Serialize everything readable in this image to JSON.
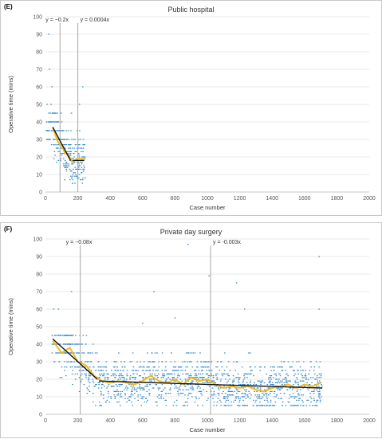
{
  "chart_data": [
    {
      "panel_label": "(E)",
      "title": "Public hospital",
      "type": "scatter",
      "xlabel": "Case number",
      "ylabel": "Operative time (mins)",
      "xlim": [
        0,
        2000
      ],
      "ylim": [
        0,
        100
      ],
      "x_ticks": [
        "0",
        "200",
        "400",
        "600",
        "800",
        "1000",
        "1200",
        "1400",
        "1600",
        "1800",
        "2000"
      ],
      "y_ticks": [
        "0",
        "10",
        "20",
        "30",
        "40",
        "50",
        "60",
        "70",
        "80",
        "90",
        "100"
      ],
      "grid": true,
      "annotations": [
        {
          "text": "y = −0.2x",
          "x": 90
        },
        {
          "text": "y = 0.0004x",
          "x": 200
        }
      ],
      "changepoints": [
        90,
        200
      ],
      "trend_lines": [
        {
          "x": [
            45,
            155
          ],
          "y": [
            37,
            18
          ]
        },
        {
          "x": [
            170,
            240
          ],
          "y": [
            18,
            18
          ]
        }
      ],
      "moving_average": {
        "x": [
          45,
          60,
          75,
          90,
          105,
          120,
          135,
          150,
          165,
          180,
          195,
          210,
          225,
          240
        ],
        "y": [
          37,
          33,
          29,
          27,
          26,
          22,
          22,
          20,
          17,
          18,
          19,
          19,
          19,
          19
        ]
      },
      "scatter": {
        "x_range": [
          5,
          245
        ],
        "y_levels": [
          5,
          7,
          8,
          9,
          10,
          11,
          12,
          13,
          14,
          15,
          16,
          17,
          18,
          19,
          20,
          21,
          22,
          23,
          25,
          27,
          30,
          35,
          40,
          45,
          50,
          60
        ],
        "outliers": [
          [
            20,
            90
          ],
          [
            25,
            70
          ],
          [
            40,
            60
          ],
          [
            230,
            60
          ],
          [
            210,
            50
          ],
          [
            35,
            50
          ],
          [
            160,
            45
          ]
        ]
      }
    },
    {
      "panel_label": "(F)",
      "title": "Private day surgery",
      "type": "scatter",
      "xlabel": "Case number",
      "ylabel": "Operative time (mins)",
      "xlim": [
        0,
        2000
      ],
      "ylim": [
        0,
        100
      ],
      "x_ticks": [
        "0",
        "200",
        "400",
        "600",
        "800",
        "1000",
        "1200",
        "1400",
        "1600",
        "1800",
        "2000"
      ],
      "y_ticks": [
        "0",
        "10",
        "20",
        "30",
        "40",
        "50",
        "60",
        "70",
        "80",
        "90",
        "100"
      ],
      "grid": true,
      "annotations": [
        {
          "text": "y = −0.08x",
          "x": 215
        },
        {
          "text": "y = -0.003x",
          "x": 1020
        }
      ],
      "changepoints": [
        215,
        1020
      ],
      "trend_lines": [
        {
          "x": [
            45,
            320
          ],
          "y": [
            43,
            20
          ]
        },
        {
          "x": [
            330,
            1710
          ],
          "y": [
            19,
            15
          ]
        }
      ],
      "moving_average": {
        "x": [
          45,
          100,
          150,
          200,
          250,
          300,
          350,
          400,
          450,
          500,
          550,
          600,
          650,
          700,
          750,
          800,
          850,
          900,
          950,
          1000,
          1050,
          1100,
          1150,
          1200,
          1250,
          1300,
          1350,
          1400,
          1450,
          1500,
          1550,
          1600,
          1650,
          1700
        ],
        "y": [
          42,
          35,
          38,
          30,
          28,
          22,
          19,
          18,
          19,
          18,
          17,
          19,
          22,
          19,
          18,
          20,
          17,
          21,
          19,
          20,
          17,
          15,
          16,
          15,
          16,
          14,
          13,
          15,
          16,
          17,
          15,
          17,
          16,
          18
        ]
      },
      "scatter": {
        "x_range": [
          40,
          1710
        ],
        "y_levels": [
          5,
          7,
          8,
          9,
          10,
          11,
          12,
          13,
          14,
          15,
          16,
          17,
          18,
          19,
          20,
          21,
          22,
          23,
          25,
          27,
          30,
          35,
          40,
          45
        ],
        "outliers": [
          [
            880,
            97
          ],
          [
            1010,
            79
          ],
          [
            1690,
            90
          ],
          [
            670,
            70
          ],
          [
            160,
            70
          ],
          [
            1180,
            75
          ],
          [
            1230,
            60
          ],
          [
            1690,
            60
          ],
          [
            800,
            55
          ],
          [
            50,
            60
          ],
          [
            80,
            60
          ],
          [
            600,
            52
          ]
        ]
      }
    }
  ]
}
